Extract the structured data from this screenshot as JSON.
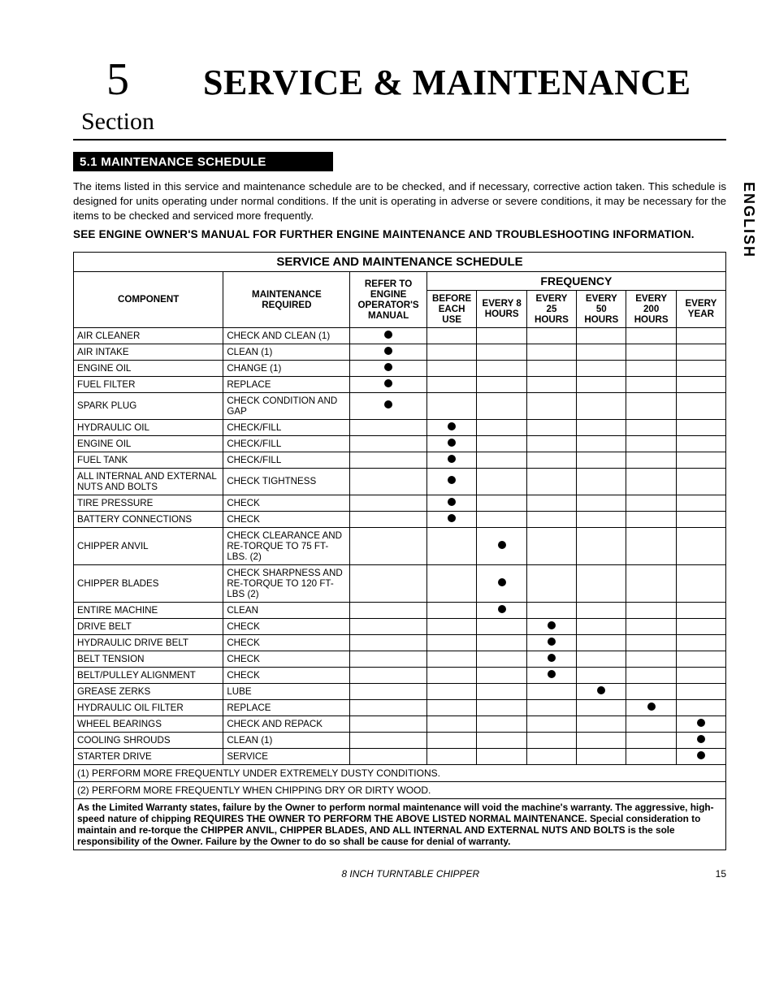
{
  "section": {
    "number": "5",
    "word": "Section"
  },
  "main_title": "Service & Maintenance",
  "side_lang": "ENGLISH",
  "subheader": "5.1  MAINTENANCE SCHEDULE",
  "intro": "The items listed in this service and maintenance schedule are to be checked, and if necessary, corrective action taken. This schedule is designed for units operating under normal conditions. If the unit is operating in adverse or severe conditions, it may be necessary for the items to be checked and serviced more frequently.",
  "bold_note": "SEE ENGINE OWNER'S MANUAL FOR FURTHER ENGINE MAINTENANCE AND TROUBLESHOOTING INFORMATION.",
  "table": {
    "title": "SERVICE AND MAINTENANCE SCHEDULE",
    "freq_label": "FREQUENCY",
    "columns": {
      "component": "COMPONENT",
      "maintenance": "MAINTENANCE REQUIRED",
      "refer": "REFER TO ENGINE OPERATOR'S MANUAL",
      "freq": [
        "BEFORE EACH USE",
        "EVERY 8 HOURS",
        "EVERY 25 HOURS",
        "EVERY 50 HOURS",
        "EVERY 200 HOURS",
        "EVERY YEAR"
      ]
    },
    "rows": [
      {
        "c": "AIR CLEANER",
        "m": "CHECK AND CLEAN (1)",
        "f": [
          1,
          0,
          0,
          0,
          0,
          0,
          0
        ]
      },
      {
        "c": "AIR INTAKE",
        "m": "CLEAN (1)",
        "f": [
          1,
          0,
          0,
          0,
          0,
          0,
          0
        ]
      },
      {
        "c": "ENGINE OIL",
        "m": "CHANGE (1)",
        "f": [
          1,
          0,
          0,
          0,
          0,
          0,
          0
        ]
      },
      {
        "c": "FUEL FILTER",
        "m": "REPLACE",
        "f": [
          1,
          0,
          0,
          0,
          0,
          0,
          0
        ]
      },
      {
        "c": "SPARK PLUG",
        "m": "CHECK CONDITION AND GAP",
        "f": [
          1,
          0,
          0,
          0,
          0,
          0,
          0
        ]
      },
      {
        "c": "HYDRAULIC OIL",
        "m": "CHECK/FILL",
        "f": [
          0,
          1,
          0,
          0,
          0,
          0,
          0
        ]
      },
      {
        "c": "ENGINE OIL",
        "m": "CHECK/FILL",
        "f": [
          0,
          1,
          0,
          0,
          0,
          0,
          0
        ]
      },
      {
        "c": "FUEL TANK",
        "m": "CHECK/FILL",
        "f": [
          0,
          1,
          0,
          0,
          0,
          0,
          0
        ]
      },
      {
        "c": "ALL INTERNAL AND EXTERNAL NUTS AND BOLTS",
        "m": "CHECK TIGHTNESS",
        "f": [
          0,
          1,
          0,
          0,
          0,
          0,
          0
        ]
      },
      {
        "c": "TIRE PRESSURE",
        "m": "CHECK",
        "f": [
          0,
          1,
          0,
          0,
          0,
          0,
          0
        ]
      },
      {
        "c": "BATTERY CONNECTIONS",
        "m": "CHECK",
        "f": [
          0,
          1,
          0,
          0,
          0,
          0,
          0
        ]
      },
      {
        "c": "CHIPPER ANVIL",
        "m": "CHECK CLEARANCE AND RE-TORQUE TO 75 FT-LBS. (2)",
        "f": [
          0,
          0,
          1,
          0,
          0,
          0,
          0
        ]
      },
      {
        "c": "CHIPPER BLADES",
        "m": "CHECK SHARPNESS AND RE-TORQUE TO 120 FT-LBS  (2)",
        "f": [
          0,
          0,
          1,
          0,
          0,
          0,
          0
        ]
      },
      {
        "c": "ENTIRE MACHINE",
        "m": "CLEAN",
        "f": [
          0,
          0,
          1,
          0,
          0,
          0,
          0
        ]
      },
      {
        "c": "DRIVE BELT",
        "m": "CHECK",
        "f": [
          0,
          0,
          0,
          1,
          0,
          0,
          0
        ]
      },
      {
        "c": "HYDRAULIC DRIVE BELT",
        "m": "CHECK",
        "f": [
          0,
          0,
          0,
          1,
          0,
          0,
          0
        ]
      },
      {
        "c": "BELT TENSION",
        "m": "CHECK",
        "f": [
          0,
          0,
          0,
          1,
          0,
          0,
          0
        ]
      },
      {
        "c": "BELT/PULLEY ALIGNMENT",
        "m": "CHECK",
        "f": [
          0,
          0,
          0,
          1,
          0,
          0,
          0
        ]
      },
      {
        "c": "GREASE ZERKS",
        "m": "LUBE",
        "f": [
          0,
          0,
          0,
          0,
          1,
          0,
          0
        ]
      },
      {
        "c": "HYDRAULIC OIL FILTER",
        "m": "REPLACE",
        "f": [
          0,
          0,
          0,
          0,
          0,
          1,
          0
        ]
      },
      {
        "c": "WHEEL BEARINGS",
        "m": "CHECK AND REPACK",
        "f": [
          0,
          0,
          0,
          0,
          0,
          0,
          1
        ]
      },
      {
        "c": "COOLING SHROUDS",
        "m": "CLEAN (1)",
        "f": [
          0,
          0,
          0,
          0,
          0,
          0,
          1
        ]
      },
      {
        "c": "STARTER DRIVE",
        "m": "SERVICE",
        "f": [
          0,
          0,
          0,
          0,
          0,
          0,
          1
        ]
      }
    ],
    "footnotes": [
      "(1) PERFORM MORE FREQUENTLY UNDER EXTREMELY DUSTY CONDITIONS.",
      "(2) PERFORM MORE FREQUENTLY WHEN CHIPPING DRY OR DIRTY WOOD."
    ],
    "warranty": "As the Limited Warranty states, failure by the Owner to perform normal maintenance will void the machine's warranty. The aggressive, high-speed nature of chipping REQUIRES THE OWNER TO PERFORM THE ABOVE LISTED NORMAL MAINTENANCE. Special consideration to maintain and re-torque the CHIPPER ANVIL, CHIPPER BLADES, AND ALL INTERNAL AND EXTERNAL NUTS AND BOLTS is the sole responsibility of the Owner. Failure by the Owner to do so shall be cause for denial of warranty."
  },
  "footer": {
    "title": "8 INCH TURNTABLE CHIPPER",
    "page": "15"
  }
}
